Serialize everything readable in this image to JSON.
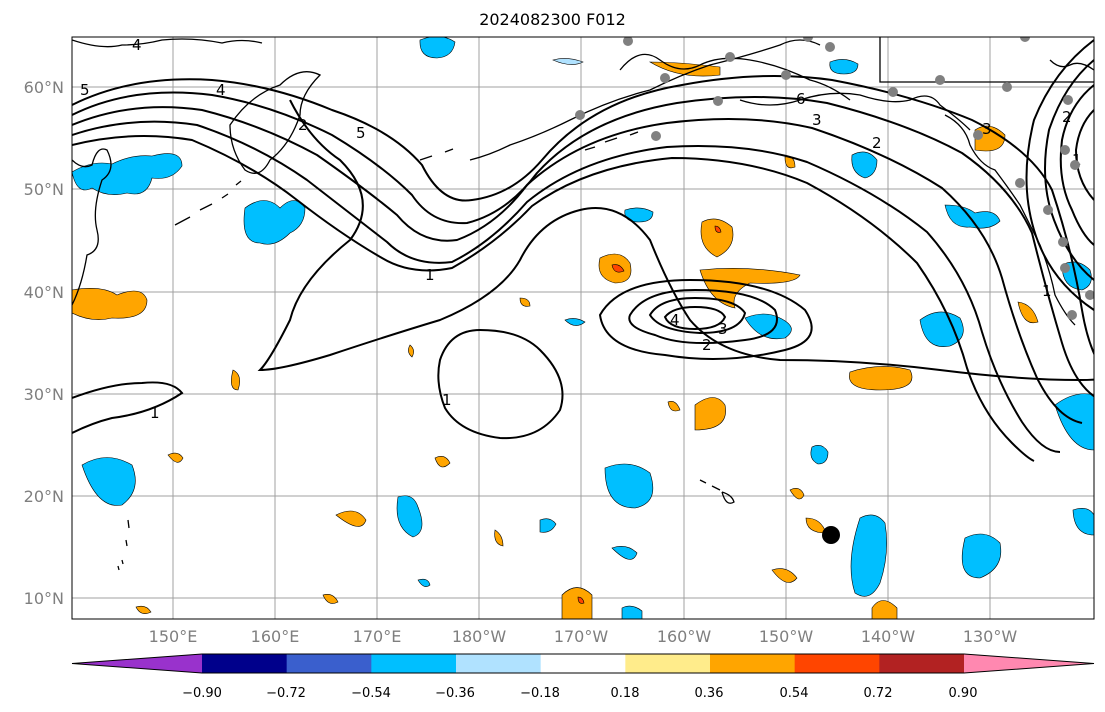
{
  "title": "2024082300 F012",
  "map": {
    "lat_labels": [
      "60°N",
      "50°N",
      "40°N",
      "30°N",
      "20°N",
      "10°N"
    ],
    "lon_labels": [
      "150°E",
      "160°E",
      "170°E",
      "180°W",
      "170°W",
      "160°W",
      "150°W",
      "140°W",
      "130°W"
    ],
    "gridline_color": "#a0a0a0",
    "contour_labels": [
      "4",
      "5",
      "4",
      "2",
      "5",
      "6",
      "3",
      "2",
      "1",
      "1",
      "1",
      "4",
      "3",
      "2",
      "1",
      "2",
      "1",
      "3"
    ]
  },
  "colorbar": {
    "ticks": [
      "−0.90",
      "−0.72",
      "−0.54",
      "−0.36",
      "−0.18",
      "0.18",
      "0.36",
      "0.54",
      "0.72",
      "0.90"
    ],
    "colors": [
      "#9932cc",
      "#00008b",
      "#3a5fcd",
      "#00bfff",
      "#b0e2ff",
      "#ffffff",
      "#ffec8b",
      "#ffa500",
      "#ff4500",
      "#b22222",
      "#ff88b0"
    ]
  }
}
